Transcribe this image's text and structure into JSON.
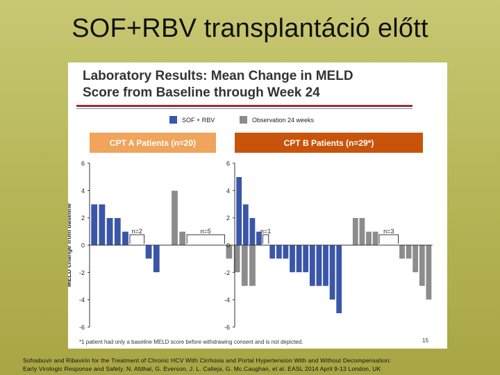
{
  "slide": {
    "title": "SOF+RBV transplantáció előtt",
    "citation_line1": "Sofosbuvir and Ribavirin for the Treatment of Chronic HCV With Cirrhosis and Portal Hypertension With and Without Decompensation:",
    "citation_line2": "Early Virologic Response and Safety. N. Afdhal, G. Everson, J. L. Calleja, G. Mc.Caughan, et al. EASL 2014 April 9-13 London, UK"
  },
  "panel": {
    "title_line1": "Laboratory Results: Mean Change in MELD",
    "title_line2": "Score from Baseline through Week 24",
    "footnote": "*1 patient had only a baseline MELD score before withdrawing consent and is not depicted.",
    "slide_number": "15"
  },
  "legend": [
    {
      "label": "SOF + RBV",
      "color": "#3a56a8"
    },
    {
      "label": "Observation 24 weeks",
      "color": "#8c8c8c"
    }
  ],
  "chart_data": [
    {
      "type": "bar",
      "title": "CPT A Patients (n=20)",
      "header_color": "#f0a45c",
      "ylabel": "MELD change from baseline",
      "ylim": [
        -6,
        6
      ],
      "yticks": [
        6,
        4,
        2,
        0,
        -2,
        -4,
        -6
      ],
      "grid": false,
      "series": [
        {
          "name": "SOF + RBV",
          "color": "#3a56a8",
          "values": [
            3,
            3,
            2,
            2,
            1,
            0,
            0,
            -1,
            -2
          ]
        },
        {
          "name": "Observation 24 weeks",
          "color": "#8c8c8c",
          "values": [
            4,
            1,
            0,
            0,
            0,
            0,
            0,
            -1,
            -2,
            -3,
            -3
          ]
        }
      ],
      "annotations": [
        {
          "label": "n=2",
          "series": 0,
          "zero_count": 2
        },
        {
          "label": "n=5",
          "series": 1,
          "zero_count": 5
        }
      ]
    },
    {
      "type": "bar",
      "title": "CPT B Patients (n=29*)",
      "header_color": "#c8540c",
      "ylim": [
        -6,
        6
      ],
      "yticks": [
        6,
        4,
        2,
        0,
        -2,
        -4,
        -6
      ],
      "grid": false,
      "series": [
        {
          "name": "SOF + RBV",
          "color": "#3a56a8",
          "values": [
            5,
            3,
            2,
            1,
            0,
            -1,
            -1,
            -1,
            -2,
            -2,
            -2,
            -3,
            -3,
            -3,
            -4,
            -5
          ]
        },
        {
          "name": "Observation 24 weeks",
          "color": "#8c8c8c",
          "values": [
            2,
            2,
            1,
            1,
            0,
            0,
            0,
            -1,
            -1,
            -2,
            -3,
            -4
          ]
        }
      ],
      "annotations": [
        {
          "label": "n=1",
          "series": 0,
          "zero_count": 1
        },
        {
          "label": "n=3",
          "series": 1,
          "zero_count": 3
        }
      ]
    }
  ]
}
